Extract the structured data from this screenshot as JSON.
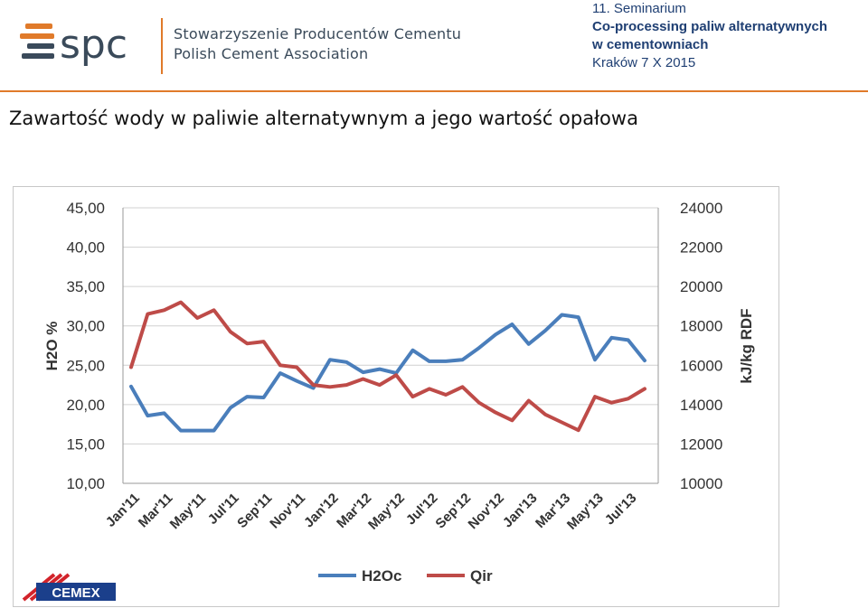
{
  "header": {
    "logo_text": "spc",
    "org_line1": "Stowarzyszenie Producentów Cementu",
    "org_line2": "Polish Cement Association",
    "seminar_line1": "11. Seminarium",
    "seminar_line2": "Co-processing paliw alternatywnych",
    "seminar_line3": "w cementowniach",
    "seminar_line4": "Kraków 7 X 2015"
  },
  "slide_title": "Zawartość wody w paliwie alternatywnym a jego wartość opałowa",
  "footer_logo_text": "CEMEX",
  "colors": {
    "accent": "#e07a2a",
    "h2o": "#4a7ebb",
    "qir": "#be4b48",
    "header_text": "#1f3f73"
  },
  "chart_data": {
    "type": "line",
    "x": [
      "Jan'11",
      "Feb'11",
      "Mar'11",
      "Apr'11",
      "May'11",
      "Jun'11",
      "Jul'11",
      "Aug'11",
      "Sep'11",
      "Oct'11",
      "Nov'11",
      "Dec'11",
      "Jan'12",
      "Feb'12",
      "Mar'12",
      "Apr'12",
      "May'12",
      "Jun'12",
      "Jul'12",
      "Aug'12",
      "Sep'12",
      "Oct'12",
      "Nov'12",
      "Dec'12",
      "Jan'13",
      "Feb'13",
      "Mar'13",
      "Apr'13",
      "May'13",
      "Jun'13",
      "Jul'13",
      "Aug'13"
    ],
    "x_tick_labels": [
      "Jan'11",
      "Mar'11",
      "May'11",
      "Jul'11",
      "Sep'11",
      "Nov'11",
      "Jan'12",
      "Mar'12",
      "May'12",
      "Jul'12",
      "Sep'12",
      "Nov'12",
      "Jan'13",
      "Mar'13",
      "May'13",
      "Jul'13"
    ],
    "series": [
      {
        "name": "H2Oc",
        "axis": "left",
        "color": "#4a7ebb",
        "values": [
          22.3,
          18.6,
          18.9,
          16.7,
          16.7,
          16.7,
          19.6,
          21.0,
          20.9,
          24.0,
          23.0,
          22.1,
          25.7,
          25.4,
          24.1,
          24.5,
          24.0,
          26.9,
          25.5,
          25.5,
          25.7,
          27.2,
          28.9,
          30.2,
          27.7,
          29.4,
          31.4,
          31.1,
          25.7,
          28.5,
          28.2,
          25.6
        ]
      },
      {
        "name": "Qir",
        "axis": "right",
        "color": "#be4b48",
        "values": [
          15900,
          18600,
          18800,
          19200,
          18400,
          18800,
          17700,
          17100,
          17200,
          16000,
          15900,
          15000,
          14900,
          15000,
          15300,
          15000,
          15500,
          14400,
          14800,
          14500,
          14900,
          14100,
          13600,
          13200,
          14200,
          13500,
          13100,
          12700,
          14400,
          14100,
          14300,
          14800
        ]
      }
    ],
    "y_left": {
      "label": "H2O %",
      "min": 10,
      "max": 45,
      "ticks": [
        "10,00",
        "15,00",
        "20,00",
        "25,00",
        "30,00",
        "35,00",
        "40,00",
        "45,00"
      ]
    },
    "y_right": {
      "label": "kJ/kg RDF",
      "min": 10000,
      "max": 24000,
      "ticks": [
        "10000",
        "12000",
        "14000",
        "16000",
        "18000",
        "20000",
        "22000",
        "24000"
      ]
    },
    "grid": true,
    "legend_position": "bottom"
  }
}
